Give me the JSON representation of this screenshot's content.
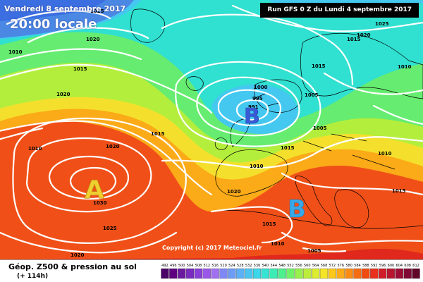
{
  "header": {
    "date": "Vendredi 8 septembre 2017",
    "time": "20:00 locale",
    "run": "Run GFS 0 Z du Lundi 4 septembre 2017"
  },
  "footer": {
    "title": "Géop. Z500 & pression au sol",
    "subtitle": "(+ 114h)",
    "copyright": "Copyright (c) 2017 Meteociel.fr"
  },
  "legend": {
    "values": [
      "492",
      "496",
      "500",
      "504",
      "508",
      "512",
      "516",
      "520",
      "524",
      "528",
      "532",
      "536",
      "540",
      "544",
      "548",
      "552",
      "556",
      "560",
      "564",
      "568",
      "572",
      "576",
      "580",
      "584",
      "588",
      "592",
      "596",
      "600",
      "604",
      "608",
      "612"
    ],
    "colors": [
      "#4b0068",
      "#5f0080",
      "#6b1aa0",
      "#7a2cc0",
      "#8840d8",
      "#9a58e8",
      "#a070f0",
      "#7f88f4",
      "#6c9cf6",
      "#5cb0f6",
      "#4cc4f0",
      "#3cd6e8",
      "#36e4d4",
      "#3cecb4",
      "#4cf08c",
      "#70f268",
      "#98f04c",
      "#bcec3c",
      "#dcec30",
      "#f6e428",
      "#fcc81c",
      "#fcac18",
      "#fa8c14",
      "#f66c12",
      "#f04c10",
      "#e8301c",
      "#d01c28",
      "#b81430",
      "#9c0c34",
      "#800834",
      "#600428"
    ]
  },
  "map": {
    "colors": {
      "band_blue": "#4a88e4",
      "band_cyan": "#44c8f0",
      "band_teal": "#30e0d0",
      "band_green": "#66ec70",
      "band_lime": "#b4ee3c",
      "band_yellow": "#f4e02c",
      "band_orange": "#fbaa18",
      "band_red": "#f05018",
      "band_deepred": "#e0281c"
    },
    "centers": [
      {
        "letter": "A",
        "kind": "high",
        "color": "#f0d030"
      },
      {
        "letter": "B",
        "kind": "low",
        "color": "#3a5ad8"
      },
      {
        "letter": "B",
        "kind": "low",
        "color": "#38a8e8"
      }
    ],
    "isobar_labels": [
      "1020",
      "1025",
      "1010",
      "1015",
      "1015",
      "1010",
      "1020",
      "1030",
      "1025",
      "1020",
      "1010",
      "1020",
      "1015",
      "1010",
      "1005",
      "1000",
      "995",
      "991",
      "1005",
      "1010",
      "1015",
      "1015",
      "1015",
      "1010",
      "1005",
      "1020",
      "1025",
      "1015",
      "1020"
    ]
  }
}
